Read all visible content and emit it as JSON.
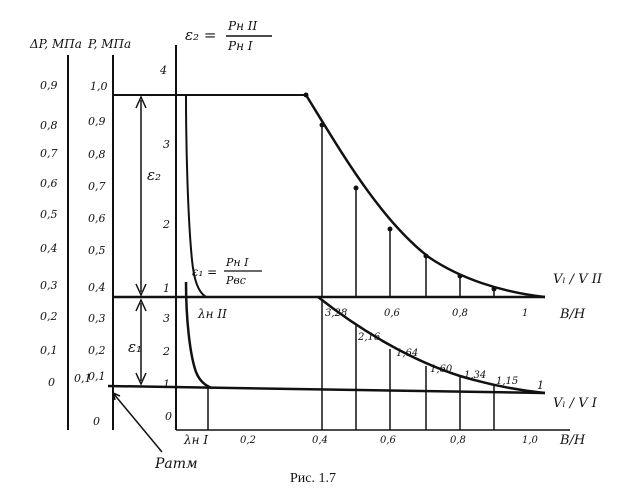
{
  "caption": "Рис. 1.7",
  "axis_dp": {
    "label": "ΔP, МПа",
    "ticks": [
      "0,9",
      "0,8",
      "0,7",
      "0,6",
      "0,5",
      "0,4",
      "0,3",
      "0,2",
      "0,1",
      "0"
    ]
  },
  "axis_p": {
    "label": "P, МПа",
    "ticks": [
      "1,0",
      "0,9",
      "0,8",
      "0,7",
      "0,6",
      "0,5",
      "0,4",
      "0,3",
      "0,2",
      "0,1",
      "0"
    ]
  },
  "axis_eps2": {
    "ticks": [
      "4",
      "3",
      "2",
      "1"
    ]
  },
  "axis_eps1": {
    "ticks": [
      "3",
      "2",
      "1",
      "0"
    ]
  },
  "eps2_formula": {
    "lhs": "ε₂ =",
    "num": "Pн II",
    "den": "Pн I"
  },
  "eps1_formula": {
    "lhs": "ε₁ =",
    "num": "Pн I",
    "den": "Pвс"
  },
  "eps2_label": "ε₂",
  "eps1_label": "ε₁",
  "upper_axis": {
    "right_label": "Vₗ / V II",
    "bh_label": "B/H",
    "ticks": [
      "3,28",
      "0,6",
      "0,8",
      "1"
    ]
  },
  "lower_axis": {
    "right_label": "Vₗ / V I",
    "bh_label": "B/H",
    "ticks": [
      "0,2",
      "0,4",
      "0,6",
      "0,8",
      "1,0"
    ]
  },
  "lambda2": "λн II",
  "lambda1": "λн I",
  "lower_curve_labels": [
    "2,16",
    "1,64",
    "1,60",
    "1,34",
    "1,15"
  ],
  "p_atm": "Pатм",
  "p_ref": "0,1",
  "curve_end_label": "1"
}
